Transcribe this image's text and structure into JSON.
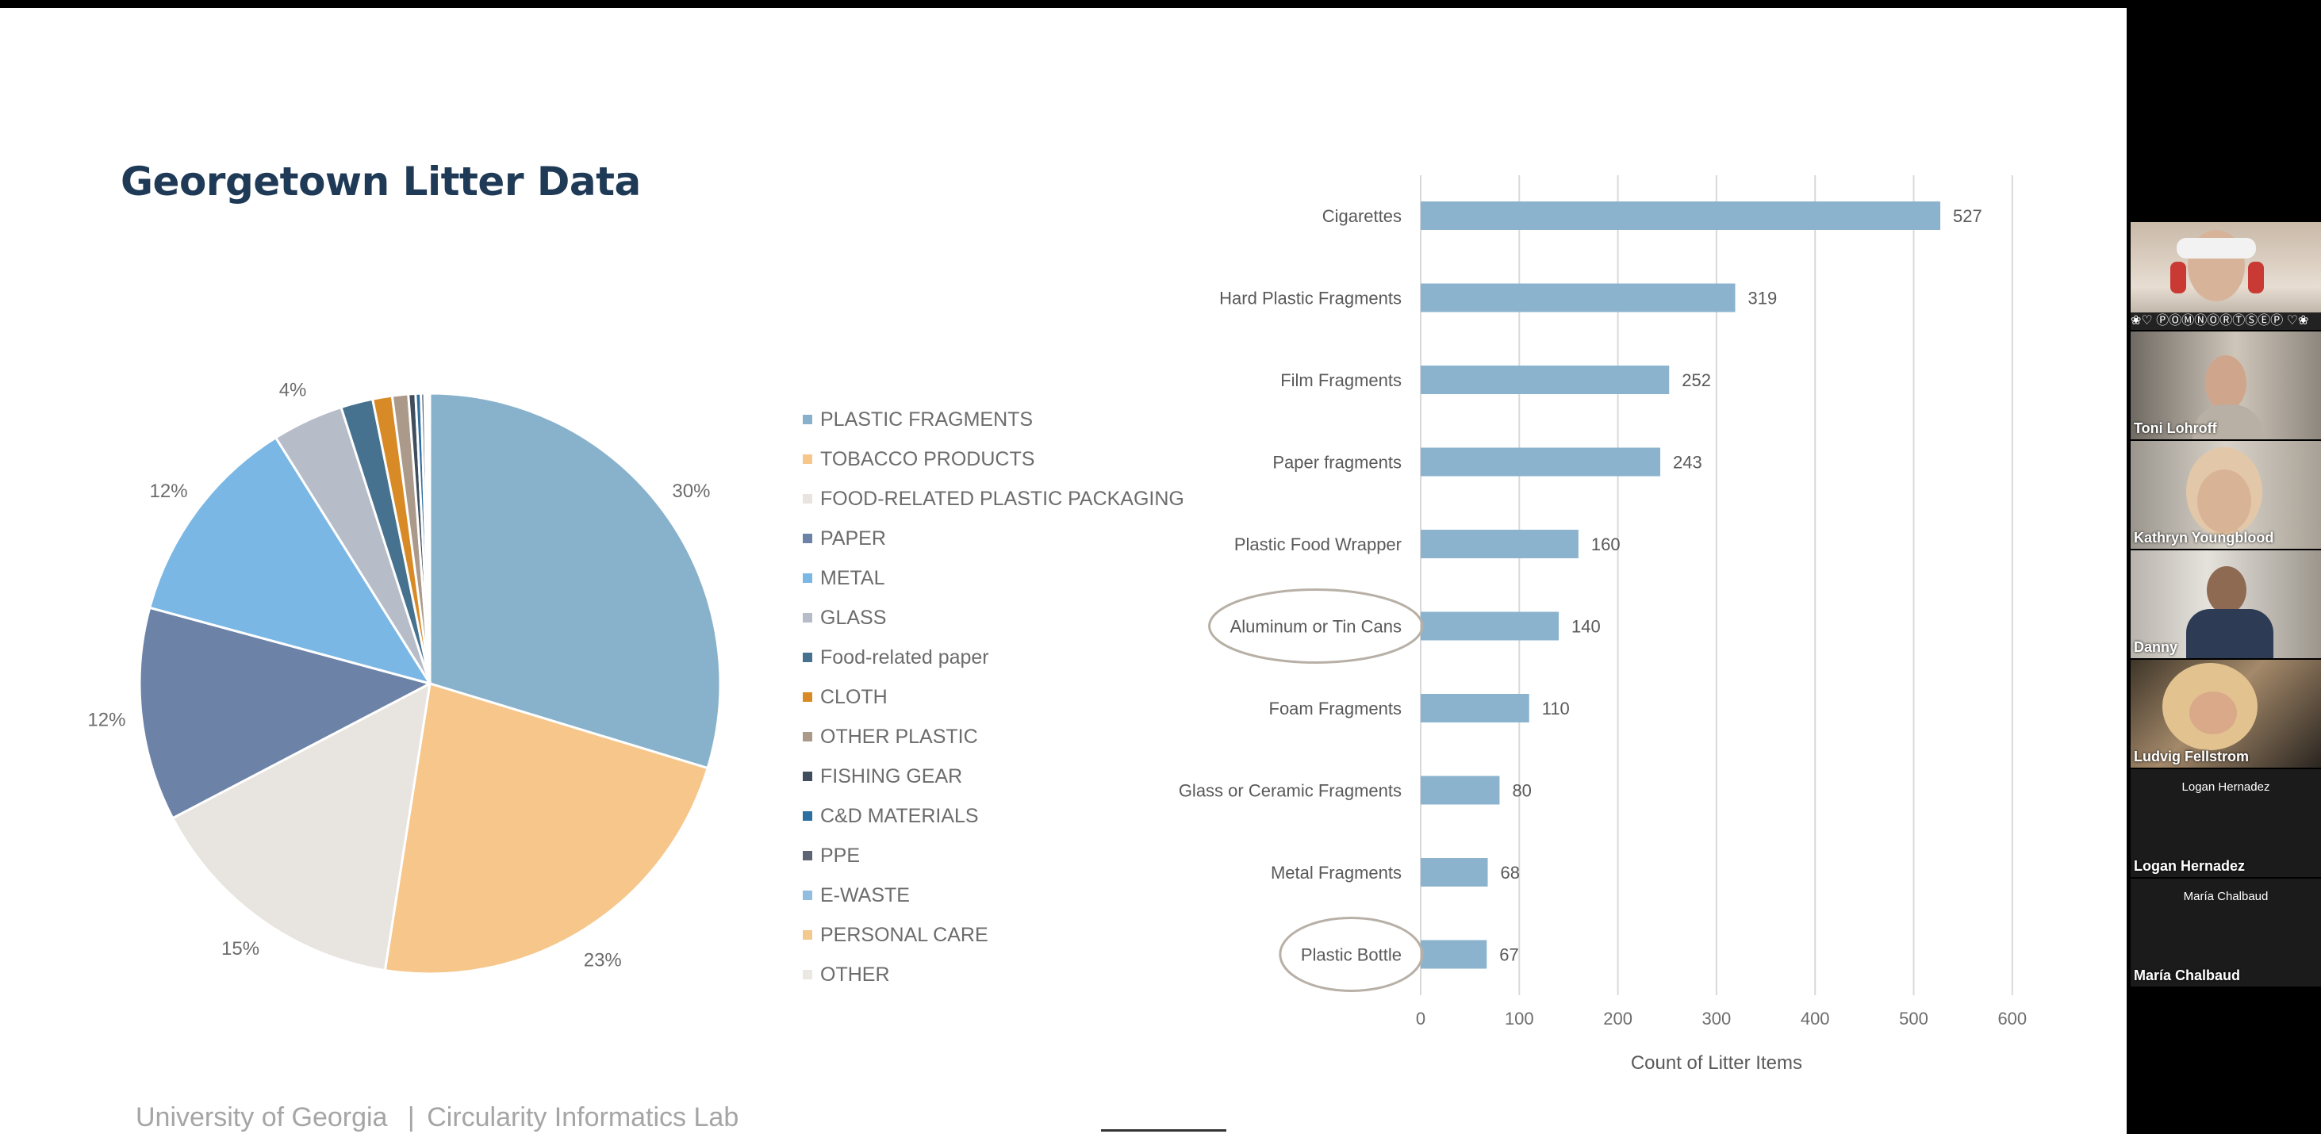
{
  "slide": {
    "title": "Georgetown Litter Data",
    "footer_org": "University of Georgia",
    "footer_sep": "|",
    "footer_lab": "Circularity Informatics Lab"
  },
  "chart_data": [
    {
      "type": "pie",
      "slices": [
        {
          "label": "PLASTIC FRAGMENTS",
          "value": 30,
          "color": "#88b2cc"
        },
        {
          "label": "TOBACCO PRODUCTS",
          "value": 23,
          "color": "#f6c68b"
        },
        {
          "label": "FOOD-RELATED PLASTIC PACKAGING",
          "value": 15,
          "color": "#e8e4df"
        },
        {
          "label": "PAPER",
          "value": 12,
          "color": "#6c82a7"
        },
        {
          "label": "METAL",
          "value": 12,
          "color": "#7ab7e4"
        },
        {
          "label": "GLASS",
          "value": 4,
          "color": "#b7bdc8"
        },
        {
          "label": "Food-related paper",
          "value": 1.8,
          "color": "#46718f"
        },
        {
          "label": "CLOTH",
          "value": 1.1,
          "color": "#d88a26"
        },
        {
          "label": "OTHER PLASTIC",
          "value": 0.9,
          "color": "#ab9a8a"
        },
        {
          "label": "FISHING GEAR",
          "value": 0.4,
          "color": "#3f4d5c"
        },
        {
          "label": "C&D MATERIALS",
          "value": 0.3,
          "color": "#2e6fa2"
        },
        {
          "label": "PPE",
          "value": 0.2,
          "color": "#5d6574"
        },
        {
          "label": "E-WASTE",
          "value": 0.1,
          "color": "#92bde0"
        },
        {
          "label": "PERSONAL CARE",
          "value": 0.1,
          "color": "#f3c98f"
        },
        {
          "label": "OTHER",
          "value": 0.1,
          "color": "#ebe7e2"
        }
      ],
      "data_labels": [
        {
          "text": "30%",
          "slice": 0
        },
        {
          "text": "23%",
          "slice": 1
        },
        {
          "text": "15%",
          "slice": 2
        },
        {
          "text": "12%",
          "slice": 3
        },
        {
          "text": "12%",
          "slice": 4
        },
        {
          "text": "4%",
          "slice": 5
        }
      ],
      "legend": "right"
    },
    {
      "type": "bar",
      "orientation": "horizontal",
      "categories": [
        "Cigarettes",
        "Hard Plastic Fragments",
        "Film Fragments",
        "Paper fragments",
        "Plastic Food Wrapper",
        "Aluminum or Tin Cans",
        "Foam Fragments",
        "Glass or Ceramic Fragments",
        "Metal Fragments",
        "Plastic Bottle"
      ],
      "values": [
        527,
        319,
        252,
        243,
        160,
        140,
        110,
        80,
        68,
        67
      ],
      "xlabel": "Count of Litter Items",
      "ylabel": "",
      "xlim": [
        0,
        600
      ],
      "xticks": [
        0,
        100,
        200,
        300,
        400,
        500,
        600
      ],
      "grid": true,
      "bar_color": "#8bb3cd",
      "circled_categories": [
        "Aluminum or Tin Cans",
        "Plastic Bottle"
      ]
    }
  ],
  "participants": [
    {
      "name": "",
      "has_video": true
    },
    {
      "name": "Toni Lohroff",
      "has_video": true
    },
    {
      "name": "Kathryn Youngblood",
      "has_video": true
    },
    {
      "name": "Danny",
      "has_video": true
    },
    {
      "name": "Ludvig Fellstrom",
      "has_video": true
    },
    {
      "name": "Logan Hernadez",
      "display": "Logan Hernadez",
      "has_video": false
    },
    {
      "name": "María Chalbaud",
      "display": "María Chalbaud",
      "has_video": false
    }
  ]
}
